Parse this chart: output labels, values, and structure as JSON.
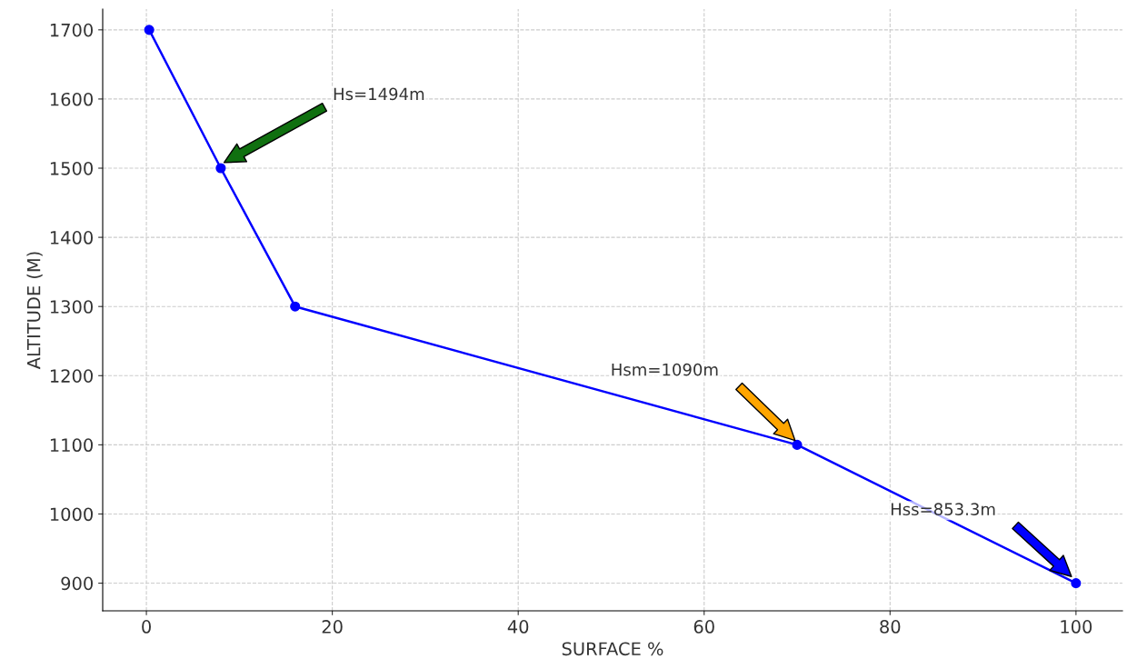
{
  "chart_data": {
    "type": "line",
    "xlabel": "SURFACE %",
    "ylabel": "ALTITUDE (M)",
    "x": [
      0.3,
      8,
      16,
      70,
      100
    ],
    "series": [
      {
        "color": "#0000ff",
        "values": [
          1700,
          1500,
          1300,
          1100,
          900
        ]
      }
    ],
    "xlim": [
      -4.7,
      105
    ],
    "ylim": [
      860,
      1730
    ],
    "xticks": [
      0,
      20,
      40,
      60,
      80,
      100
    ],
    "yticks": [
      900,
      1000,
      1100,
      1200,
      1300,
      1400,
      1500,
      1600,
      1700
    ],
    "grid": true,
    "marker": "circle",
    "line_style": "solid",
    "annotations": [
      "Hs=1494m",
      "Hsm=1090m",
      "Hss=853.3m"
    ]
  }
}
